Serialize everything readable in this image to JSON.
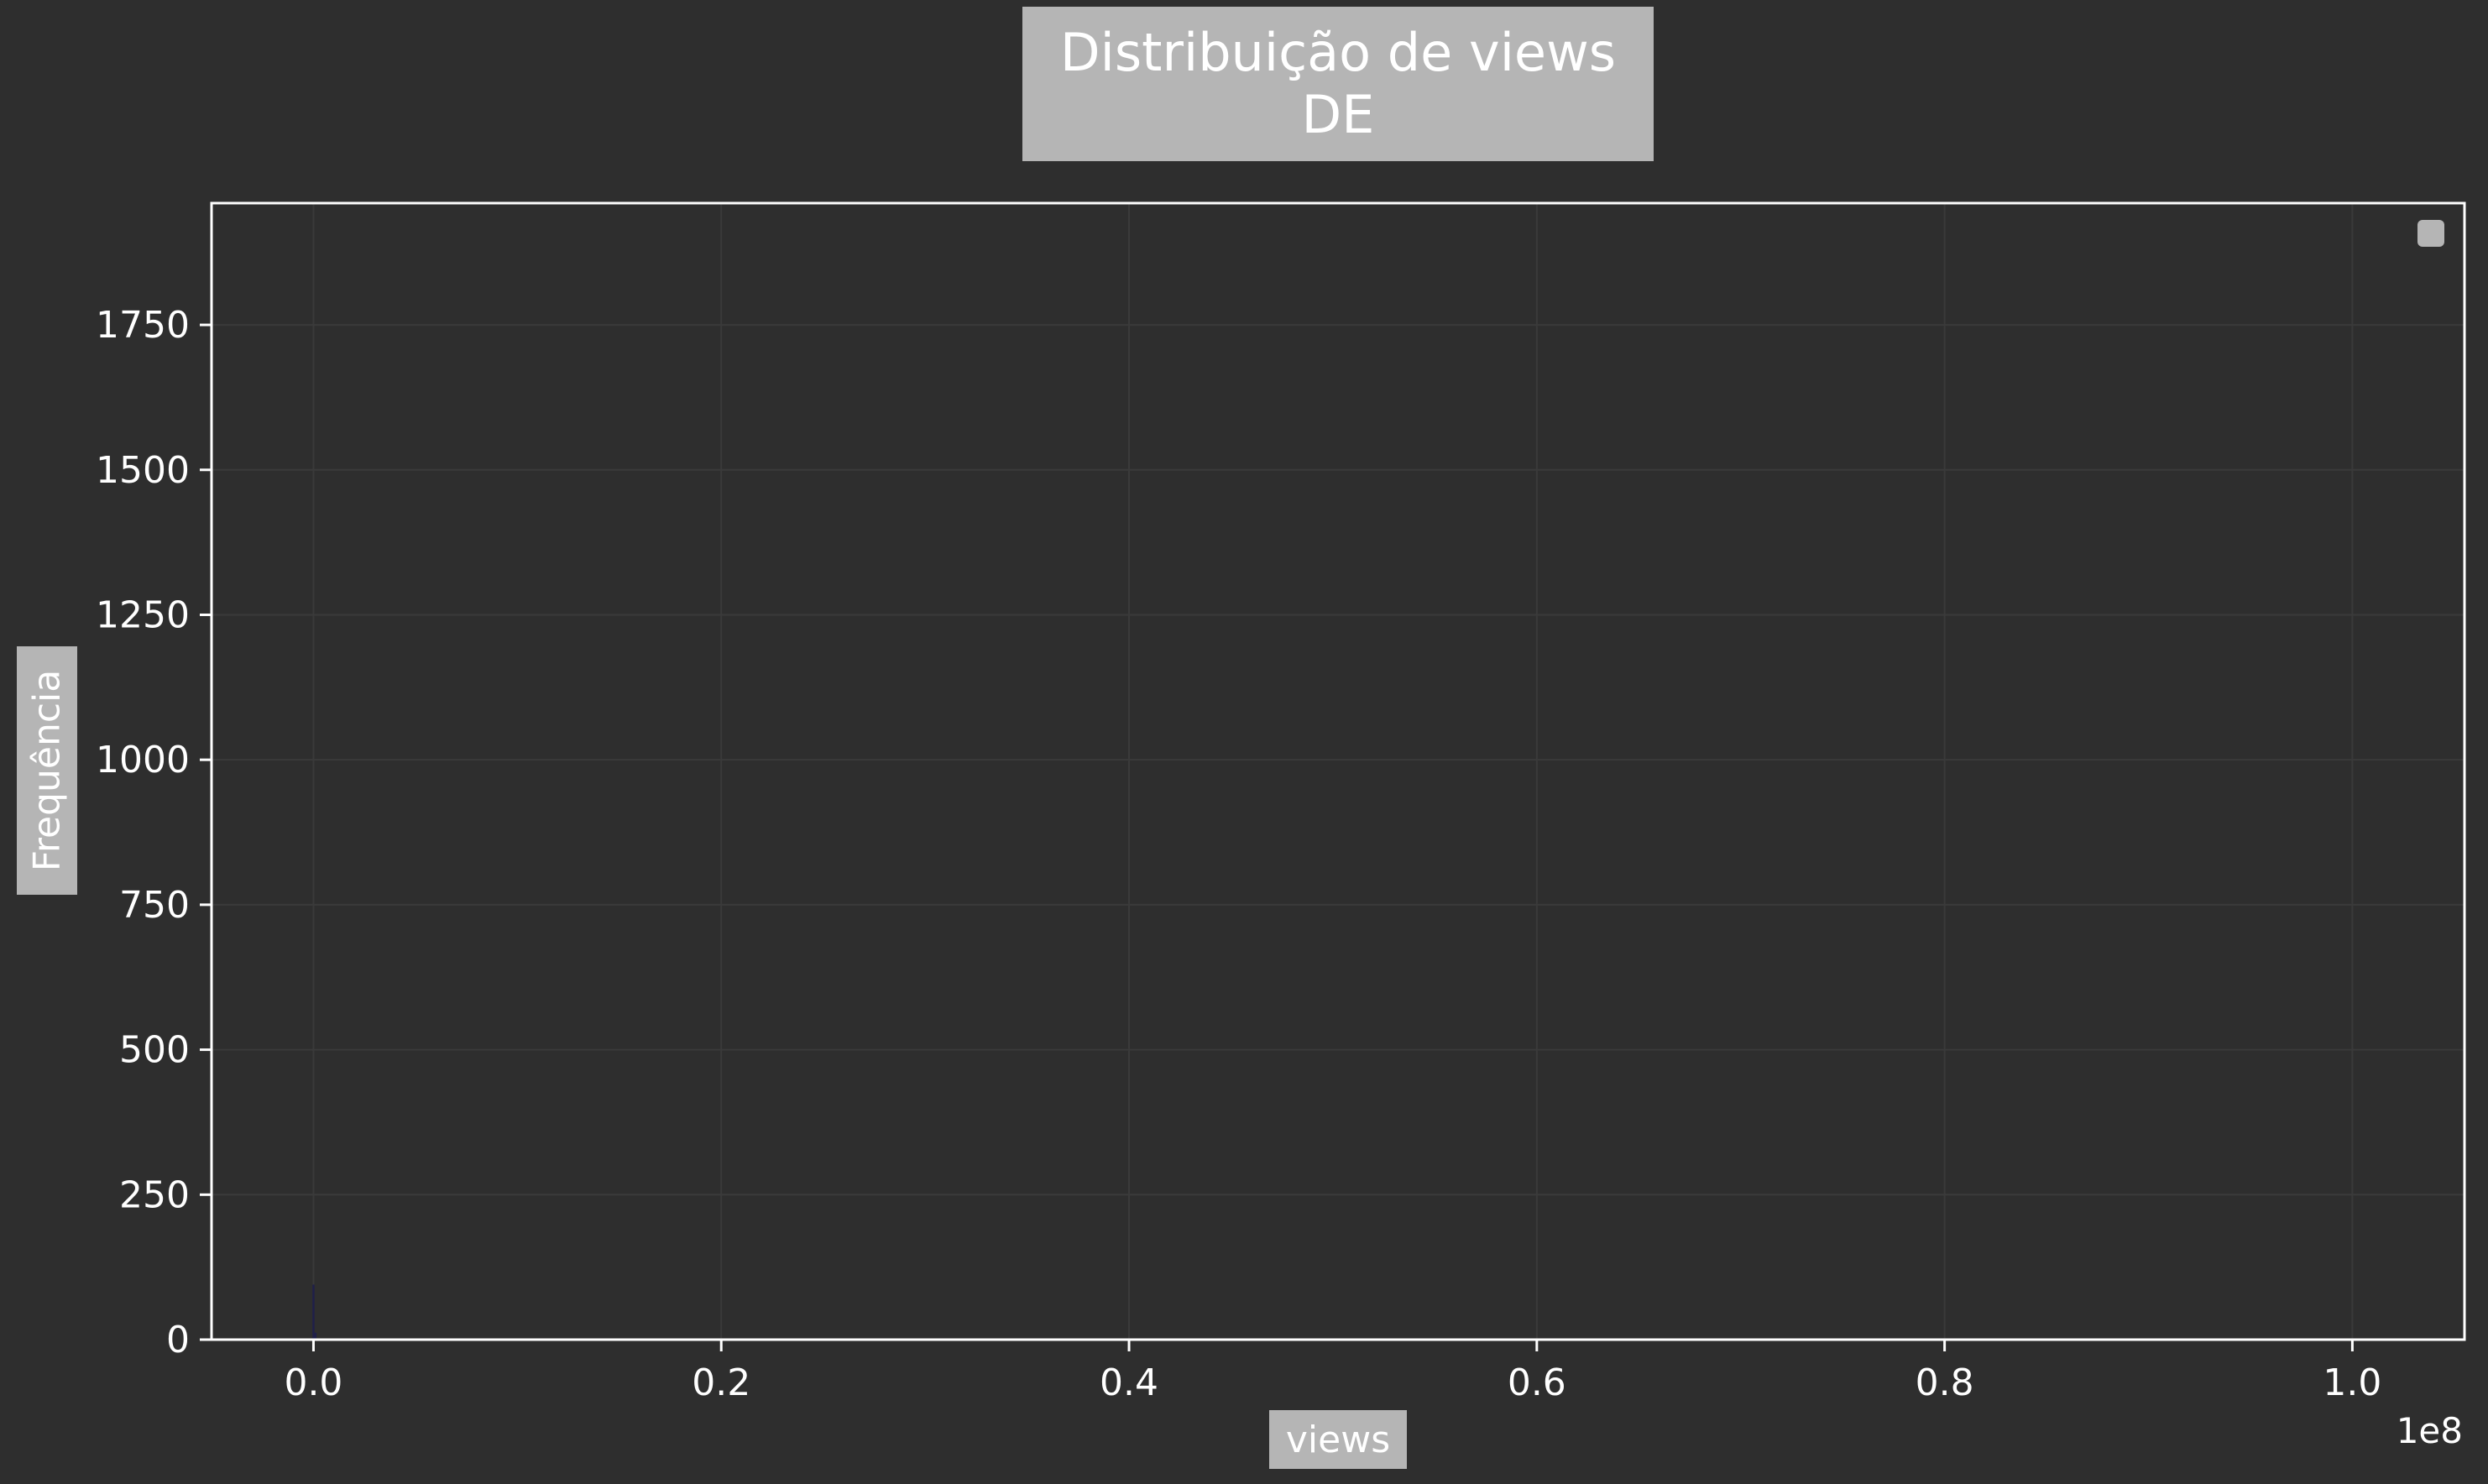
{
  "chart_data": {
    "type": "bar",
    "title": [
      "Distribuição de views",
      "DE"
    ],
    "xlabel": "views",
    "ylabel": "Frequência",
    "x_offset_label": "1e8",
    "xlim": [
      -0.05,
      1.055
    ],
    "ylim": [
      0,
      1960
    ],
    "x_ticks": [
      0.0,
      0.2,
      0.4,
      0.6,
      0.8,
      1.0
    ],
    "x_tick_labels": [
      "0.0",
      "0.2",
      "0.4",
      "0.6",
      "0.8",
      "1.0"
    ],
    "y_ticks": [
      0,
      250,
      500,
      750,
      1000,
      1250,
      1500,
      1750
    ],
    "y_tick_labels": [
      "0",
      "250",
      "500",
      "750",
      "1000",
      "1250",
      "1500",
      "1750"
    ],
    "grid": true,
    "legend": "top-right",
    "bins": [
      {
        "x0": -0.0005,
        "x1": 0.0005,
        "count": 95
      },
      {
        "x0": 0.0005,
        "x1": 0.0015,
        "count": 12
      }
    ],
    "colors": {
      "background": "#2e2e2e",
      "axes_face": "#2e2e2e",
      "axes_edge": "#ffffff",
      "grid": "#3a3a3a",
      "label_box": "#b5b5b5",
      "bar": "#1f1f4a"
    }
  }
}
